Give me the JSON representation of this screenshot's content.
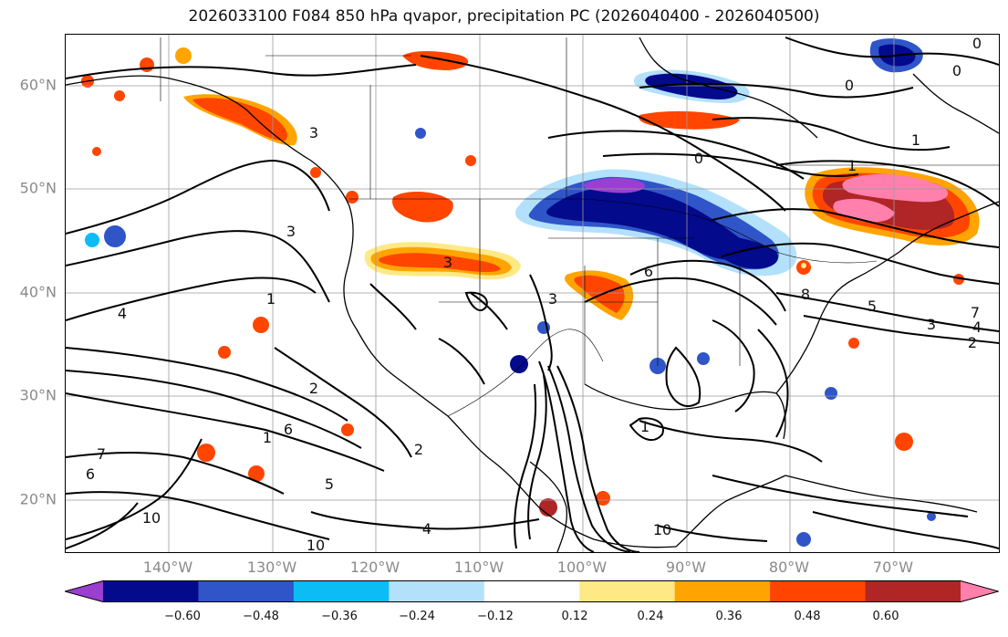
{
  "title": "2026033100 F084 850 hPa qvapor, precipitation PC (2026040400 - 2026040500)",
  "lat_labels": [
    "60°N",
    "50°N",
    "40°N",
    "30°N",
    "20°N"
  ],
  "lon_labels": [
    "140°W",
    "130°W",
    "120°W",
    "110°W",
    "100°W",
    "90°W",
    "80°W",
    "70°W"
  ],
  "colorbar": {
    "ticks": [
      "−0.60",
      "−0.48",
      "−0.36",
      "−0.24",
      "−0.12",
      "0.12",
      "0.24",
      "0.36",
      "0.48",
      "0.60"
    ],
    "colors": [
      "#9a3fd1",
      "#030a8c",
      "#2f55c9",
      "#0bbcf5",
      "#b3e1fb",
      "#ffffff",
      "#ffe985",
      "#ffa400",
      "#ff4500",
      "#b02525",
      "#ff80ad"
    ]
  },
  "contour_labels": [
    "0",
    "0",
    "0",
    "0",
    "1",
    "1",
    "1",
    "1",
    "1",
    "2",
    "2",
    "2",
    "3",
    "3",
    "3",
    "3",
    "3",
    "4",
    "4",
    "4",
    "5",
    "5",
    "6",
    "6",
    "6",
    "7",
    "7",
    "8",
    "10",
    "10",
    "10"
  ]
}
